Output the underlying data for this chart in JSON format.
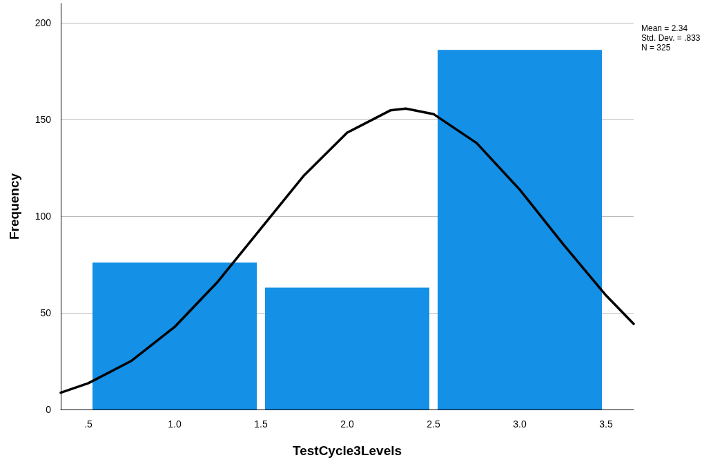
{
  "chart_data": {
    "type": "histogram",
    "xlabel": "TestCycle3Levels",
    "ylabel": "Frequency",
    "bins": [
      0.5,
      1.5,
      2.5,
      3.5
    ],
    "values": [
      76,
      63,
      186
    ],
    "color": "#1490e6",
    "series": [
      {
        "type": "line",
        "color": "#000000",
        "x": [
          0.34,
          0.5,
          0.75,
          1.0,
          1.25,
          1.5,
          1.75,
          2.0,
          2.25,
          2.34,
          2.5,
          2.75,
          3.0,
          3.25,
          3.5,
          3.66
        ],
        "values": [
          8.7,
          13.6,
          25.2,
          42.7,
          66.1,
          93.6,
          121.1,
          143.2,
          154.7,
          155.6,
          152.8,
          137.8,
          113.7,
          85.7,
          59.0,
          44.3
        ]
      }
    ],
    "marker": "none",
    "xlim": [
      0.34,
      3.66
    ],
    "xticks": [
      {
        "value": 0.5,
        "label": ".5"
      },
      {
        "value": 1,
        "label": "1.0"
      },
      {
        "value": 1.5,
        "label": "1.5"
      },
      {
        "value": 2,
        "label": "2.0"
      },
      {
        "value": 2.5,
        "label": "2.5"
      },
      {
        "value": 3,
        "label": "3.0"
      },
      {
        "value": 3.5,
        "label": "3.5"
      }
    ],
    "ylim": [
      0,
      210
    ],
    "yticks": [
      0,
      50,
      100,
      150,
      200
    ],
    "grid": "y",
    "annotations": [
      "Mean = 2.34",
      "Std. Dev. = .833",
      "N = 325"
    ]
  }
}
